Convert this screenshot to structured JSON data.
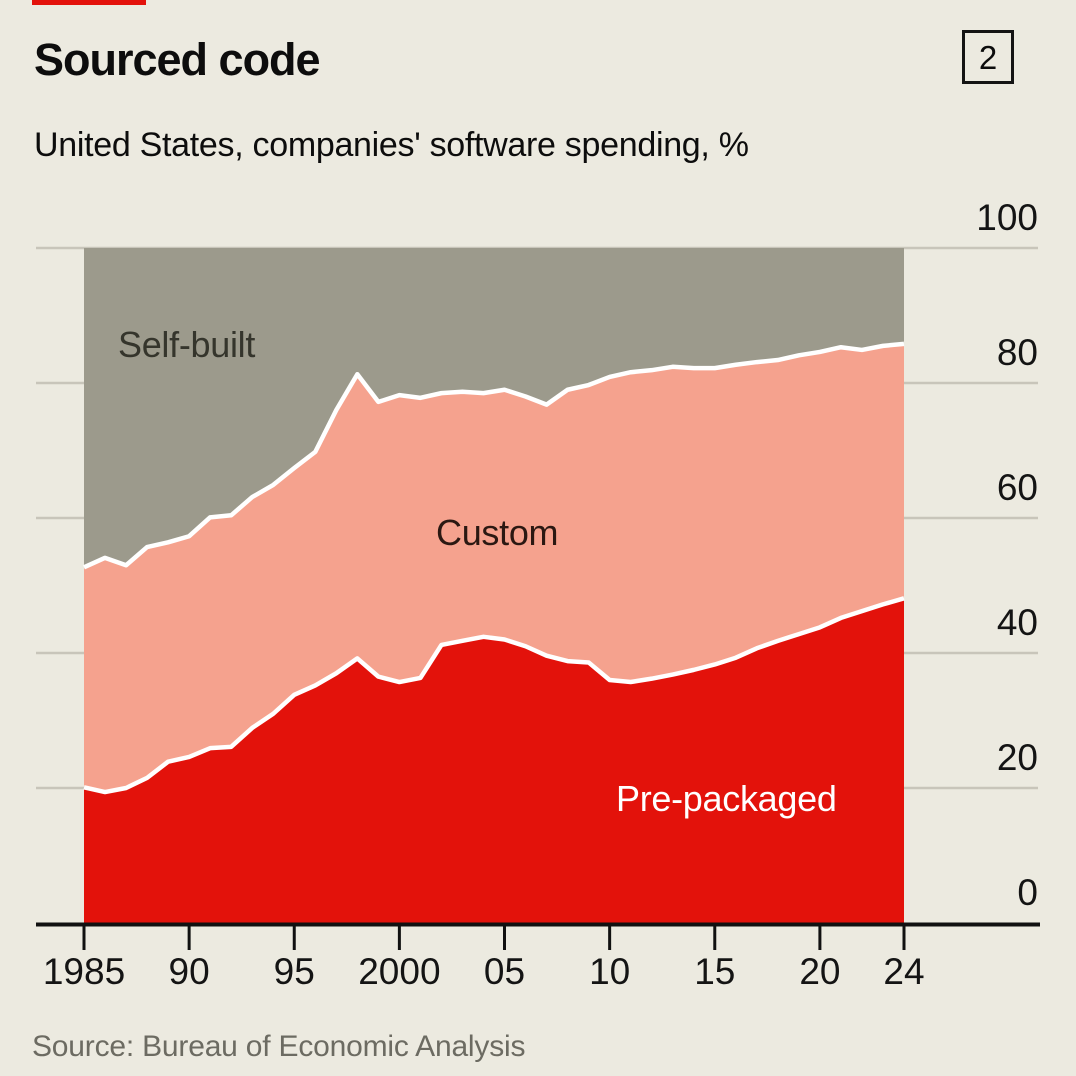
{
  "header": {
    "title": "Sourced code",
    "subtitle": "United States, companies' software spending, %",
    "index_badge": "2",
    "tab_color": "#E3120B"
  },
  "source": {
    "text": "Source: Bureau of Economic Analysis"
  },
  "chart_data": {
    "type": "area",
    "stacked": true,
    "title": "Sourced code",
    "subtitle": "United States, companies' software spending, %",
    "xlabel": "",
    "ylabel": "%",
    "ylim": [
      0,
      100
    ],
    "grid": true,
    "legend_position": "inline-labels",
    "x": [
      1985,
      1986,
      1987,
      1988,
      1989,
      1990,
      1991,
      1992,
      1993,
      1994,
      1995,
      1996,
      1997,
      1998,
      1999,
      2000,
      2001,
      2002,
      2003,
      2004,
      2005,
      2006,
      2007,
      2008,
      2009,
      2010,
      2011,
      2012,
      2013,
      2014,
      2015,
      2016,
      2017,
      2018,
      2019,
      2020,
      2021,
      2022,
      2023,
      2024
    ],
    "x_tick_years": [
      1985,
      1990,
      1995,
      2000,
      2005,
      2010,
      2015,
      2020,
      2024
    ],
    "x_tick_labels": [
      "1985",
      "90",
      "95",
      "2000",
      "05",
      "10",
      "15",
      "20",
      "24"
    ],
    "y_ticks": [
      0,
      20,
      40,
      60,
      80,
      100
    ],
    "series": [
      {
        "name": "Pre-packaged",
        "color": "#E3120B",
        "label_text_color": "#FFFFFF",
        "values": [
          20.1,
          19.4,
          20.0,
          21.5,
          23.9,
          24.6,
          25.9,
          26.1,
          28.9,
          31.0,
          33.8,
          35.2,
          37.0,
          39.2,
          36.5,
          35.7,
          36.3,
          41.2,
          41.8,
          42.4,
          42.0,
          41.0,
          39.6,
          38.8,
          38.6,
          36.0,
          35.7,
          36.2,
          36.8,
          37.5,
          38.3,
          39.3,
          40.7,
          41.8,
          42.8,
          43.8,
          45.2,
          46.2,
          47.2,
          48.1
        ]
      },
      {
        "name": "Custom",
        "color": "#F5A28E",
        "label_text_color": "#2B1812",
        "values": [
          32.6,
          34.7,
          33.0,
          34.2,
          32.5,
          32.7,
          34.2,
          34.3,
          34.2,
          33.9,
          33.6,
          34.6,
          39.0,
          42.1,
          40.7,
          42.5,
          41.5,
          37.3,
          36.9,
          36.1,
          37.0,
          37.0,
          37.2,
          40.2,
          41.1,
          44.9,
          45.9,
          45.7,
          45.6,
          44.7,
          43.9,
          43.4,
          42.4,
          41.6,
          41.3,
          40.8,
          40.1,
          38.7,
          38.3,
          37.7
        ]
      },
      {
        "name": "Self-built",
        "color": "#9C9A8C",
        "label_text_color": "#35352C",
        "values": [
          47.3,
          45.9,
          47.0,
          44.3,
          43.6,
          42.7,
          39.9,
          39.6,
          36.9,
          35.1,
          32.6,
          30.2,
          24.0,
          18.7,
          22.8,
          21.8,
          22.2,
          21.5,
          21.3,
          21.5,
          21.0,
          22.0,
          23.2,
          21.0,
          20.3,
          19.1,
          18.4,
          18.1,
          17.6,
          17.8,
          17.8,
          17.3,
          16.9,
          16.6,
          15.9,
          15.4,
          14.7,
          15.1,
          14.5,
          14.2
        ]
      }
    ],
    "separator_color": "#FFFFFF",
    "grid_color": "#C8C5BA",
    "axis_color": "#111111"
  }
}
